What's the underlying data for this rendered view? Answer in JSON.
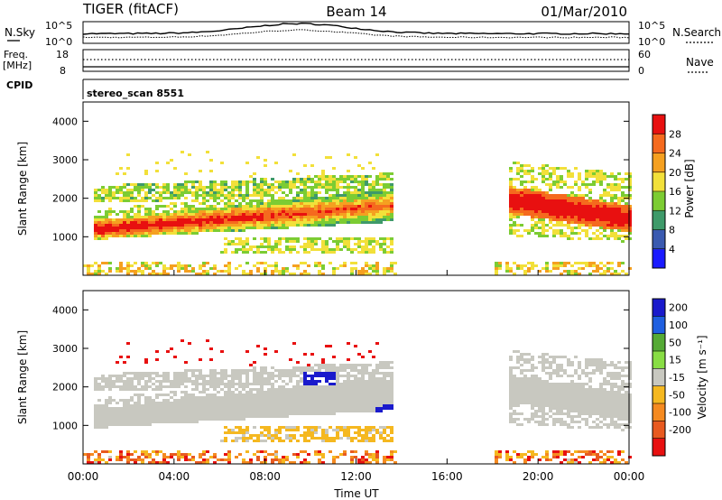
{
  "header": {
    "station": "TIGER (fitACF)",
    "beam": "Beam 14",
    "date": "01/Mar/2010"
  },
  "strips": {
    "nsky_label": "N.Sky",
    "nsearch_label": "N.Search",
    "count_ticks": [
      "10^5",
      "10^0"
    ],
    "freq_label_line1": "Freq.",
    "freq_label_line2": "[MHz]",
    "freq_ticks": [
      "18",
      "8"
    ],
    "nave_label": "Nave",
    "nave_ticks": [
      "60",
      "0"
    ],
    "cpid_label": "CPID",
    "cpid_value": "stereo_scan 8551"
  },
  "chart_data": [
    {
      "type": "heatmap",
      "quantity": "power",
      "ylabel": "Slant Range [km]",
      "xlim": [
        "00:00",
        "24:00"
      ],
      "ylim": [
        0,
        4500
      ],
      "y_ticks": [
        1000,
        2000,
        3000,
        4000
      ],
      "colorbar": {
        "label": "Power [dB]",
        "ticks": [
          4,
          8,
          12,
          16,
          20,
          24,
          28
        ],
        "colors": [
          "#1a1aff",
          "#3a5ab0",
          "#3e9a6a",
          "#7ccc33",
          "#f2e03a",
          "#f5a020",
          "#f56a1e",
          "#e81010"
        ]
      },
      "features": [
        {
          "name": "main E/F band",
          "start_ut": 0.5,
          "end_ut": 13.5,
          "range_km": [
            950,
            1600
          ],
          "peak_db": 30
        },
        {
          "name": "upper echo band",
          "start_ut": 0.5,
          "end_ut": 13.5,
          "range_km": [
            1900,
            2500
          ],
          "peak_db": 18
        },
        {
          "name": "afternoon echoes",
          "start_ut": 18.5,
          "end_ut": 24.0,
          "range_km": [
            900,
            2800
          ],
          "peak_db": 28
        }
      ]
    },
    {
      "type": "heatmap",
      "quantity": "velocity",
      "ylabel": "Slant Range [km]",
      "xlabel": "Time UT",
      "xlim": [
        "00:00",
        "24:00"
      ],
      "ylim": [
        0,
        4500
      ],
      "y_ticks": [
        1000,
        2000,
        3000,
        4000
      ],
      "x_ticks": [
        "00:00",
        "04:00",
        "08:00",
        "12:00",
        "16:00",
        "20:00",
        "00:00"
      ],
      "colorbar": {
        "label": "Velocity [m s⁻¹]",
        "ticks": [
          200,
          100,
          50,
          15,
          -15,
          -50,
          -100,
          -200
        ],
        "colors": [
          "#1a1acc",
          "#1f5fe0",
          "#55aa35",
          "#88dd44",
          "#c8c8c0",
          "#f5b820",
          "#f58a20",
          "#e85a20",
          "#e81010"
        ]
      },
      "features": [
        {
          "name": "ground scatter band",
          "start_ut": 0.5,
          "end_ut": 13.5,
          "range_km": [
            950,
            1700
          ],
          "velocity": 0
        },
        {
          "name": "toward radar patch",
          "start_ut": 9.5,
          "end_ut": 11.0,
          "range_km": [
            2100,
            2400
          ],
          "velocity": 200
        },
        {
          "name": "toward radar streak",
          "start_ut": 12.5,
          "end_ut": 14.5,
          "range_km": [
            1200,
            1800
          ],
          "velocity": 200
        }
      ]
    }
  ]
}
